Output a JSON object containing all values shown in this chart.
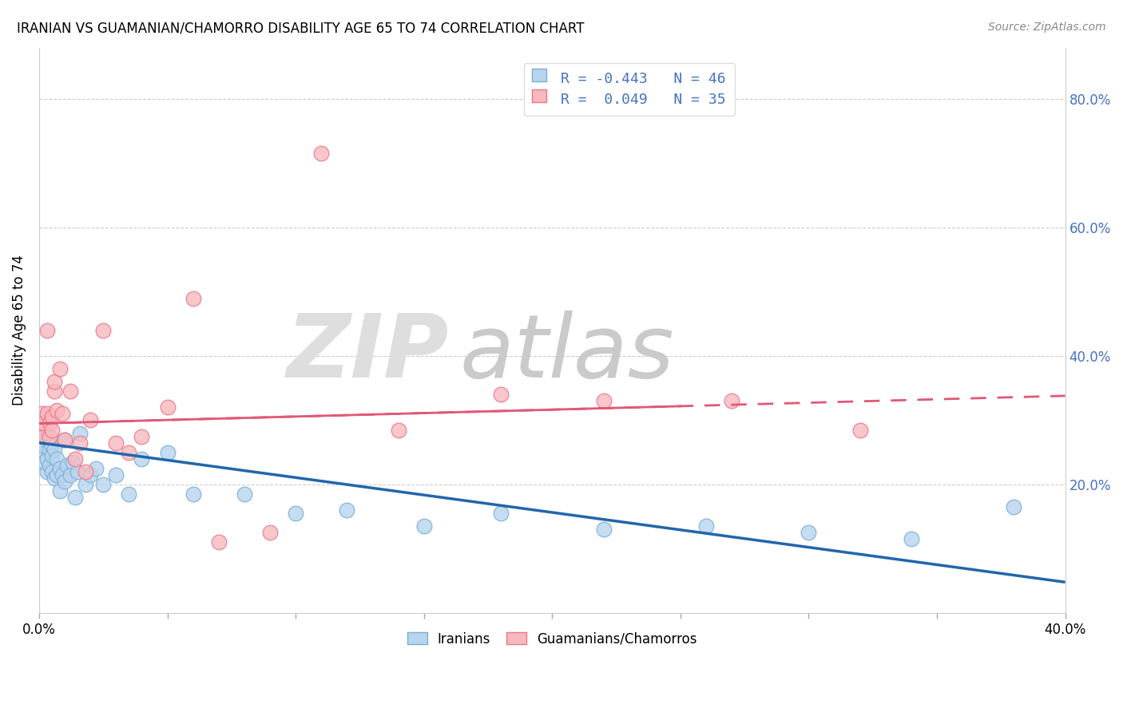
{
  "title": "IRANIAN VS GUAMANIAN/CHAMORRO DISABILITY AGE 65 TO 74 CORRELATION CHART",
  "source": "Source: ZipAtlas.com",
  "ylabel": "Disability Age 65 to 74",
  "r1": "-0.443",
  "n1": "46",
  "r2": "0.049",
  "n2": "35",
  "blue_fill": "#b8d4ee",
  "blue_edge": "#7aafd4",
  "blue_line": "#2166ac",
  "pink_fill": "#f8b8be",
  "pink_edge": "#e87888",
  "pink_line": "#e05878",
  "text_blue": "#4472c4",
  "watermark_zip": "#dedede",
  "watermark_atlas": "#cacaca",
  "xlim": [
    0.0,
    0.4
  ],
  "ylim": [
    0.0,
    0.88
  ],
  "yticks": [
    0.2,
    0.4,
    0.6,
    0.8
  ],
  "ytick_labels": [
    "20.0%",
    "40.0%",
    "60.0%",
    "80.0%"
  ],
  "iran_trend_x": [
    0.0,
    0.4
  ],
  "iran_trend_y": [
    0.265,
    0.048
  ],
  "guam_trend_x": [
    0.0,
    0.4
  ],
  "guam_trend_y": [
    0.295,
    0.338
  ],
  "iran_x": [
    0.001,
    0.001,
    0.002,
    0.002,
    0.003,
    0.003,
    0.003,
    0.004,
    0.004,
    0.005,
    0.005,
    0.005,
    0.006,
    0.006,
    0.007,
    0.007,
    0.008,
    0.008,
    0.009,
    0.01,
    0.01,
    0.011,
    0.012,
    0.013,
    0.014,
    0.015,
    0.016,
    0.018,
    0.02,
    0.022,
    0.025,
    0.03,
    0.035,
    0.04,
    0.05,
    0.06,
    0.08,
    0.1,
    0.12,
    0.15,
    0.18,
    0.22,
    0.26,
    0.3,
    0.34,
    0.38
  ],
  "iran_y": [
    0.255,
    0.27,
    0.235,
    0.26,
    0.24,
    0.27,
    0.22,
    0.23,
    0.255,
    0.26,
    0.22,
    0.245,
    0.21,
    0.255,
    0.215,
    0.24,
    0.19,
    0.225,
    0.215,
    0.205,
    0.27,
    0.23,
    0.215,
    0.235,
    0.18,
    0.22,
    0.28,
    0.2,
    0.215,
    0.225,
    0.2,
    0.215,
    0.185,
    0.24,
    0.25,
    0.185,
    0.185,
    0.155,
    0.16,
    0.135,
    0.155,
    0.13,
    0.135,
    0.125,
    0.115,
    0.165
  ],
  "guam_x": [
    0.001,
    0.001,
    0.002,
    0.002,
    0.003,
    0.003,
    0.004,
    0.004,
    0.005,
    0.005,
    0.006,
    0.006,
    0.007,
    0.008,
    0.009,
    0.01,
    0.012,
    0.014,
    0.016,
    0.018,
    0.02,
    0.025,
    0.03,
    0.035,
    0.04,
    0.05,
    0.06,
    0.07,
    0.09,
    0.11,
    0.14,
    0.18,
    0.22,
    0.27,
    0.32
  ],
  "guam_y": [
    0.29,
    0.31,
    0.275,
    0.295,
    0.44,
    0.31,
    0.275,
    0.295,
    0.305,
    0.285,
    0.345,
    0.36,
    0.315,
    0.38,
    0.31,
    0.27,
    0.345,
    0.24,
    0.265,
    0.22,
    0.3,
    0.44,
    0.265,
    0.25,
    0.275,
    0.32,
    0.49,
    0.11,
    0.125,
    0.715,
    0.285,
    0.34,
    0.33,
    0.33,
    0.285
  ]
}
